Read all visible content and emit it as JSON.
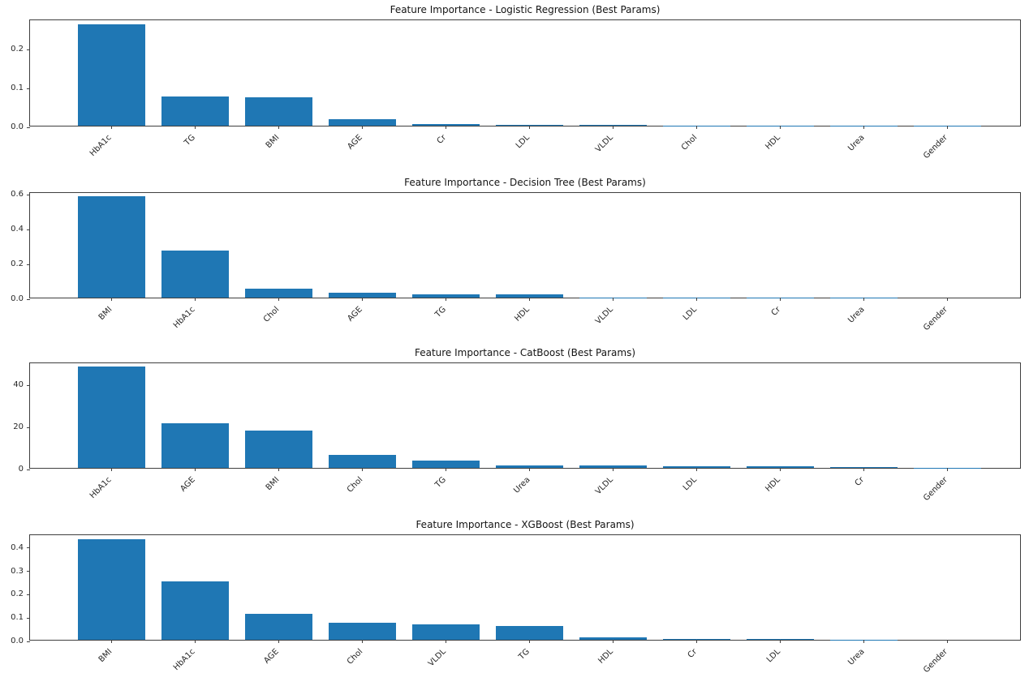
{
  "figure": {
    "background": "#ffffff",
    "bar_color": "#1f77b4",
    "spine_color": "#3f3f3f",
    "text_color": "#262626"
  },
  "chart_data": [
    {
      "type": "bar",
      "title": "Feature Importance - Logistic Regression (Best Params)",
      "categories": [
        "HbA1c",
        "TG",
        "BMI",
        "AGE",
        "Cr",
        "LDL",
        "VLDL",
        "Chol",
        "HDL",
        "Urea",
        "Gender"
      ],
      "values": [
        0.26,
        0.076,
        0.073,
        0.017,
        0.004,
        0.002,
        0.0015,
        0.001,
        0.001,
        0.0005,
        0.0002
      ],
      "ytick_labels": [
        "0.0",
        "0.1",
        "0.2"
      ],
      "yticks": [
        0,
        0.1,
        0.2
      ],
      "ylim": [
        0,
        0.275
      ],
      "xlabel": "",
      "ylabel": "",
      "grid": false
    },
    {
      "type": "bar",
      "title": "Feature Importance - Decision Tree (Best Params)",
      "categories": [
        "BMI",
        "HbA1c",
        "Chol",
        "AGE",
        "TG",
        "HDL",
        "VLDL",
        "LDL",
        "Cr",
        "Urea",
        "Gender"
      ],
      "values": [
        0.58,
        0.27,
        0.052,
        0.029,
        0.018,
        0.017,
        0.002,
        0.001,
        0.001,
        0.0005,
        0.0002
      ],
      "ytick_labels": [
        "0.0",
        "0.2",
        "0.4",
        "0.6"
      ],
      "yticks": [
        0,
        0.2,
        0.4,
        0.6
      ],
      "ylim": [
        0,
        0.61
      ],
      "xlabel": "",
      "ylabel": "",
      "grid": false
    },
    {
      "type": "bar",
      "title": "Feature Importance - CatBoost (Best Params)",
      "categories": [
        "HbA1c",
        "AGE",
        "BMI",
        "Chol",
        "TG",
        "Urea",
        "VLDL",
        "LDL",
        "HDL",
        "Cr",
        "Gender"
      ],
      "values": [
        48,
        21,
        17.8,
        6.3,
        3.3,
        1.3,
        1.0,
        0.9,
        0.9,
        0.5,
        0.05
      ],
      "ytick_labels": [
        "0",
        "20",
        "40"
      ],
      "yticks": [
        0,
        20,
        40
      ],
      "ylim": [
        0,
        50.4
      ],
      "xlabel": "",
      "ylabel": "",
      "grid": false
    },
    {
      "type": "bar",
      "title": "Feature Importance - XGBoost (Best Params)",
      "categories": [
        "BMI",
        "HbA1c",
        "AGE",
        "Chol",
        "VLDL",
        "TG",
        "HDL",
        "Cr",
        "LDL",
        "Urea",
        "Gender"
      ],
      "values": [
        0.43,
        0.25,
        0.11,
        0.073,
        0.066,
        0.06,
        0.01,
        0.005,
        0.004,
        0.001,
        0.0002
      ],
      "ytick_labels": [
        "0.0",
        "0.1",
        "0.2",
        "0.3",
        "0.4"
      ],
      "yticks": [
        0,
        0.1,
        0.2,
        0.3,
        0.4
      ],
      "ylim": [
        0,
        0.455
      ],
      "xlabel": "",
      "ylabel": "",
      "grid": false
    }
  ]
}
